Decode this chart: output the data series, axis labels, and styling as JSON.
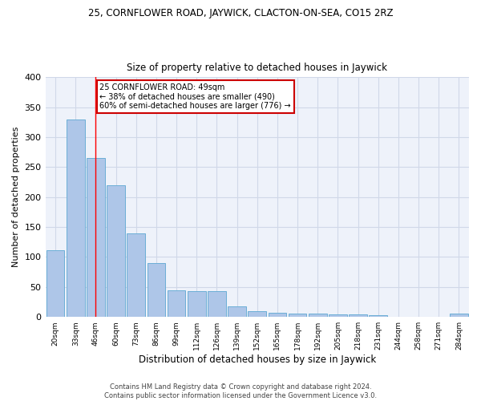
{
  "title": "25, CORNFLOWER ROAD, JAYWICK, CLACTON-ON-SEA, CO15 2RZ",
  "subtitle": "Size of property relative to detached houses in Jaywick",
  "xlabel": "Distribution of detached houses by size in Jaywick",
  "ylabel": "Number of detached properties",
  "bin_labels": [
    "20sqm",
    "33sqm",
    "46sqm",
    "60sqm",
    "73sqm",
    "86sqm",
    "99sqm",
    "112sqm",
    "126sqm",
    "139sqm",
    "152sqm",
    "165sqm",
    "178sqm",
    "192sqm",
    "205sqm",
    "218sqm",
    "231sqm",
    "244sqm",
    "258sqm",
    "271sqm",
    "284sqm"
  ],
  "bar_heights": [
    112,
    330,
    265,
    220,
    140,
    90,
    45,
    43,
    43,
    18,
    10,
    7,
    6,
    6,
    4,
    4,
    3,
    0,
    0,
    0,
    5
  ],
  "bar_color": "#aec6e8",
  "bar_edge_color": "#6baed6",
  "grid_color": "#d0d8e8",
  "bg_color": "#eef2fa",
  "red_line_x": 2,
  "annotation_line1": "25 CORNFLOWER ROAD: 49sqm",
  "annotation_line2": "← 38% of detached houses are smaller (490)",
  "annotation_line3": "60% of semi-detached houses are larger (776) →",
  "annotation_box_color": "#ffffff",
  "annotation_box_edge": "#cc0000",
  "ylim": [
    0,
    400
  ],
  "yticks": [
    0,
    50,
    100,
    150,
    200,
    250,
    300,
    350,
    400
  ],
  "footer_line1": "Contains HM Land Registry data © Crown copyright and database right 2024.",
  "footer_line2": "Contains public sector information licensed under the Government Licence v3.0."
}
